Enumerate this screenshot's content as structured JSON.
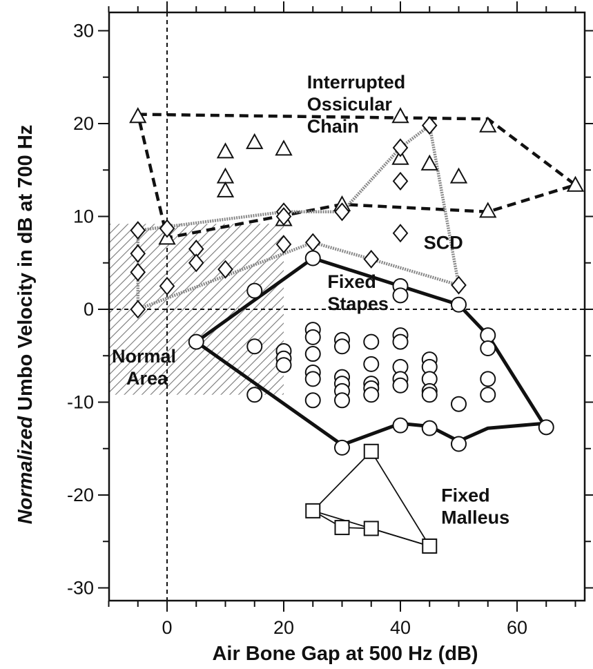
{
  "chart_data": {
    "type": "scatter",
    "title": "",
    "xlabel": "Air Bone Gap at 500 Hz (dB)",
    "ylabel_italic": "Normalized",
    "ylabel_rest": " Umbo Velocity in dB at 700 Hz",
    "xlim": [
      -15,
      72
    ],
    "ylim": [
      -31,
      32
    ],
    "x_ticks": [
      0,
      20,
      40,
      60
    ],
    "y_ticks": [
      -30,
      -20,
      -10,
      0,
      10,
      20,
      30
    ],
    "grid": false,
    "reference_lines": {
      "x": 0,
      "y": 0
    },
    "normal_area": {
      "x": [
        -10,
        20
      ],
      "y": [
        -9.2,
        9.2
      ],
      "label_lines": [
        "Normal",
        "Area"
      ]
    },
    "annotations": [
      {
        "key": "ioc",
        "lines": [
          "Interrupted",
          "Ossicular",
          "Chain"
        ],
        "x": 24,
        "y": 23.8
      },
      {
        "key": "scd",
        "lines": [
          "SCD"
        ],
        "x": 44,
        "y": 6.5
      },
      {
        "key": "stapes",
        "lines": [
          "Fixed",
          "Stapes"
        ],
        "x": 27.5,
        "y": 2.3
      },
      {
        "key": "malleus",
        "lines": [
          "Fixed",
          "Malleus"
        ],
        "x": 47,
        "y": -20.7
      }
    ],
    "series": [
      {
        "key": "ioc",
        "marker": "triangle",
        "points": [
          [
            -5,
            20.8
          ],
          [
            0,
            7.7
          ],
          [
            10,
            17
          ],
          [
            10,
            14.3
          ],
          [
            10,
            12.8
          ],
          [
            15,
            18
          ],
          [
            20,
            17.3
          ],
          [
            20,
            9.7
          ],
          [
            30,
            11.3
          ],
          [
            40,
            20.8
          ],
          [
            40,
            16.3
          ],
          [
            45,
            15.7
          ],
          [
            50,
            14.3
          ],
          [
            55,
            19.8
          ],
          [
            55,
            10.6
          ],
          [
            70,
            13.4
          ]
        ],
        "outline": [
          [
            -5,
            21
          ],
          [
            55,
            20.5
          ],
          [
            70,
            13.4
          ],
          [
            55,
            10.5
          ],
          [
            30,
            11.3
          ],
          [
            0,
            7.7
          ],
          [
            -5,
            21
          ]
        ],
        "outline_style": "dashed"
      },
      {
        "key": "scd",
        "marker": "diamond",
        "points": [
          [
            -5,
            8.5
          ],
          [
            -5,
            6
          ],
          [
            -5,
            4
          ],
          [
            -5,
            0
          ],
          [
            0,
            8.7
          ],
          [
            0,
            2.5
          ],
          [
            5,
            6.5
          ],
          [
            5,
            5
          ],
          [
            10,
            4.3
          ],
          [
            20,
            10.5
          ],
          [
            20,
            10
          ],
          [
            20,
            7
          ],
          [
            25,
            7.2
          ],
          [
            30,
            10.5
          ],
          [
            35,
            5.4
          ],
          [
            40,
            17.4
          ],
          [
            40,
            13.8
          ],
          [
            40,
            8.2
          ],
          [
            45,
            19.8
          ],
          [
            50,
            2.6
          ]
        ],
        "outline": [
          [
            -5,
            8.5
          ],
          [
            20,
            10.5
          ],
          [
            30,
            10.5
          ],
          [
            40,
            17.4
          ],
          [
            45,
            19.8
          ],
          [
            50,
            2.6
          ],
          [
            35,
            5.4
          ],
          [
            25,
            7.2
          ],
          [
            -5,
            0
          ],
          [
            -5,
            8.5
          ]
        ],
        "outline_style": "dotted"
      },
      {
        "key": "stapes",
        "marker": "circle",
        "points": [
          [
            5,
            -3.5
          ],
          [
            15,
            2
          ],
          [
            15,
            -4
          ],
          [
            15,
            -9.2
          ],
          [
            20,
            -4.5
          ],
          [
            20,
            -5.3
          ],
          [
            20,
            -6
          ],
          [
            25,
            5.5
          ],
          [
            25,
            -2.2
          ],
          [
            25,
            -3
          ],
          [
            25,
            -4.8
          ],
          [
            25,
            -6.8
          ],
          [
            25,
            -7.5
          ],
          [
            25,
            -9.8
          ],
          [
            30,
            -3.3
          ],
          [
            30,
            -4
          ],
          [
            30,
            -7.3
          ],
          [
            30,
            -8
          ],
          [
            30,
            -8.8
          ],
          [
            30,
            -9.8
          ],
          [
            30,
            -14.9
          ],
          [
            35,
            -3.5
          ],
          [
            35,
            -5.9
          ],
          [
            35,
            -8
          ],
          [
            35,
            -8.5
          ],
          [
            35,
            -9.2
          ],
          [
            40,
            2.5
          ],
          [
            40,
            1.5
          ],
          [
            40,
            -2.8
          ],
          [
            40,
            -3.5
          ],
          [
            40,
            -6.2
          ],
          [
            40,
            -7.5
          ],
          [
            40,
            -8.2
          ],
          [
            40,
            -12.5
          ],
          [
            45,
            -5.4
          ],
          [
            45,
            -6.2
          ],
          [
            45,
            -7.5
          ],
          [
            45,
            -8.8
          ],
          [
            45,
            -9.2
          ],
          [
            45,
            -12.8
          ],
          [
            50,
            0.5
          ],
          [
            50,
            -10.2
          ],
          [
            50,
            -14.5
          ],
          [
            55,
            -2.8
          ],
          [
            55,
            -4.2
          ],
          [
            55,
            -7.5
          ],
          [
            55,
            -9.2
          ],
          [
            65,
            -12.7
          ]
        ],
        "outline": [
          [
            5,
            -3.5
          ],
          [
            25,
            5.5
          ],
          [
            50,
            0.5
          ],
          [
            55,
            -2.8
          ],
          [
            64.5,
            -12.3
          ],
          [
            55,
            -12.8
          ],
          [
            50,
            -14.2
          ],
          [
            45,
            -12.6
          ],
          [
            40,
            -12.3
          ],
          [
            30,
            -14.6
          ],
          [
            5,
            -3.5
          ]
        ],
        "outline_style": "solid-thick"
      },
      {
        "key": "malleus",
        "marker": "square",
        "points": [
          [
            25,
            -21.7
          ],
          [
            30,
            -23.5
          ],
          [
            35,
            -23.6
          ],
          [
            35,
            -15.3
          ],
          [
            45,
            -25.5
          ]
        ],
        "outline": [
          [
            25,
            -21.7
          ],
          [
            35,
            -15.3
          ],
          [
            45,
            -25.5
          ],
          [
            25,
            -21.7
          ]
        ],
        "outline_style": "solid-thin",
        "extra_segments": [
          [
            [
              25,
              -21.7
            ],
            [
              30,
              -23.5
            ]
          ],
          [
            [
              30,
              -23.5
            ],
            [
              35,
              -23.6
            ]
          ],
          [
            [
              35,
              -23.6
            ],
            [
              45,
              -25.5
            ]
          ]
        ]
      }
    ]
  }
}
